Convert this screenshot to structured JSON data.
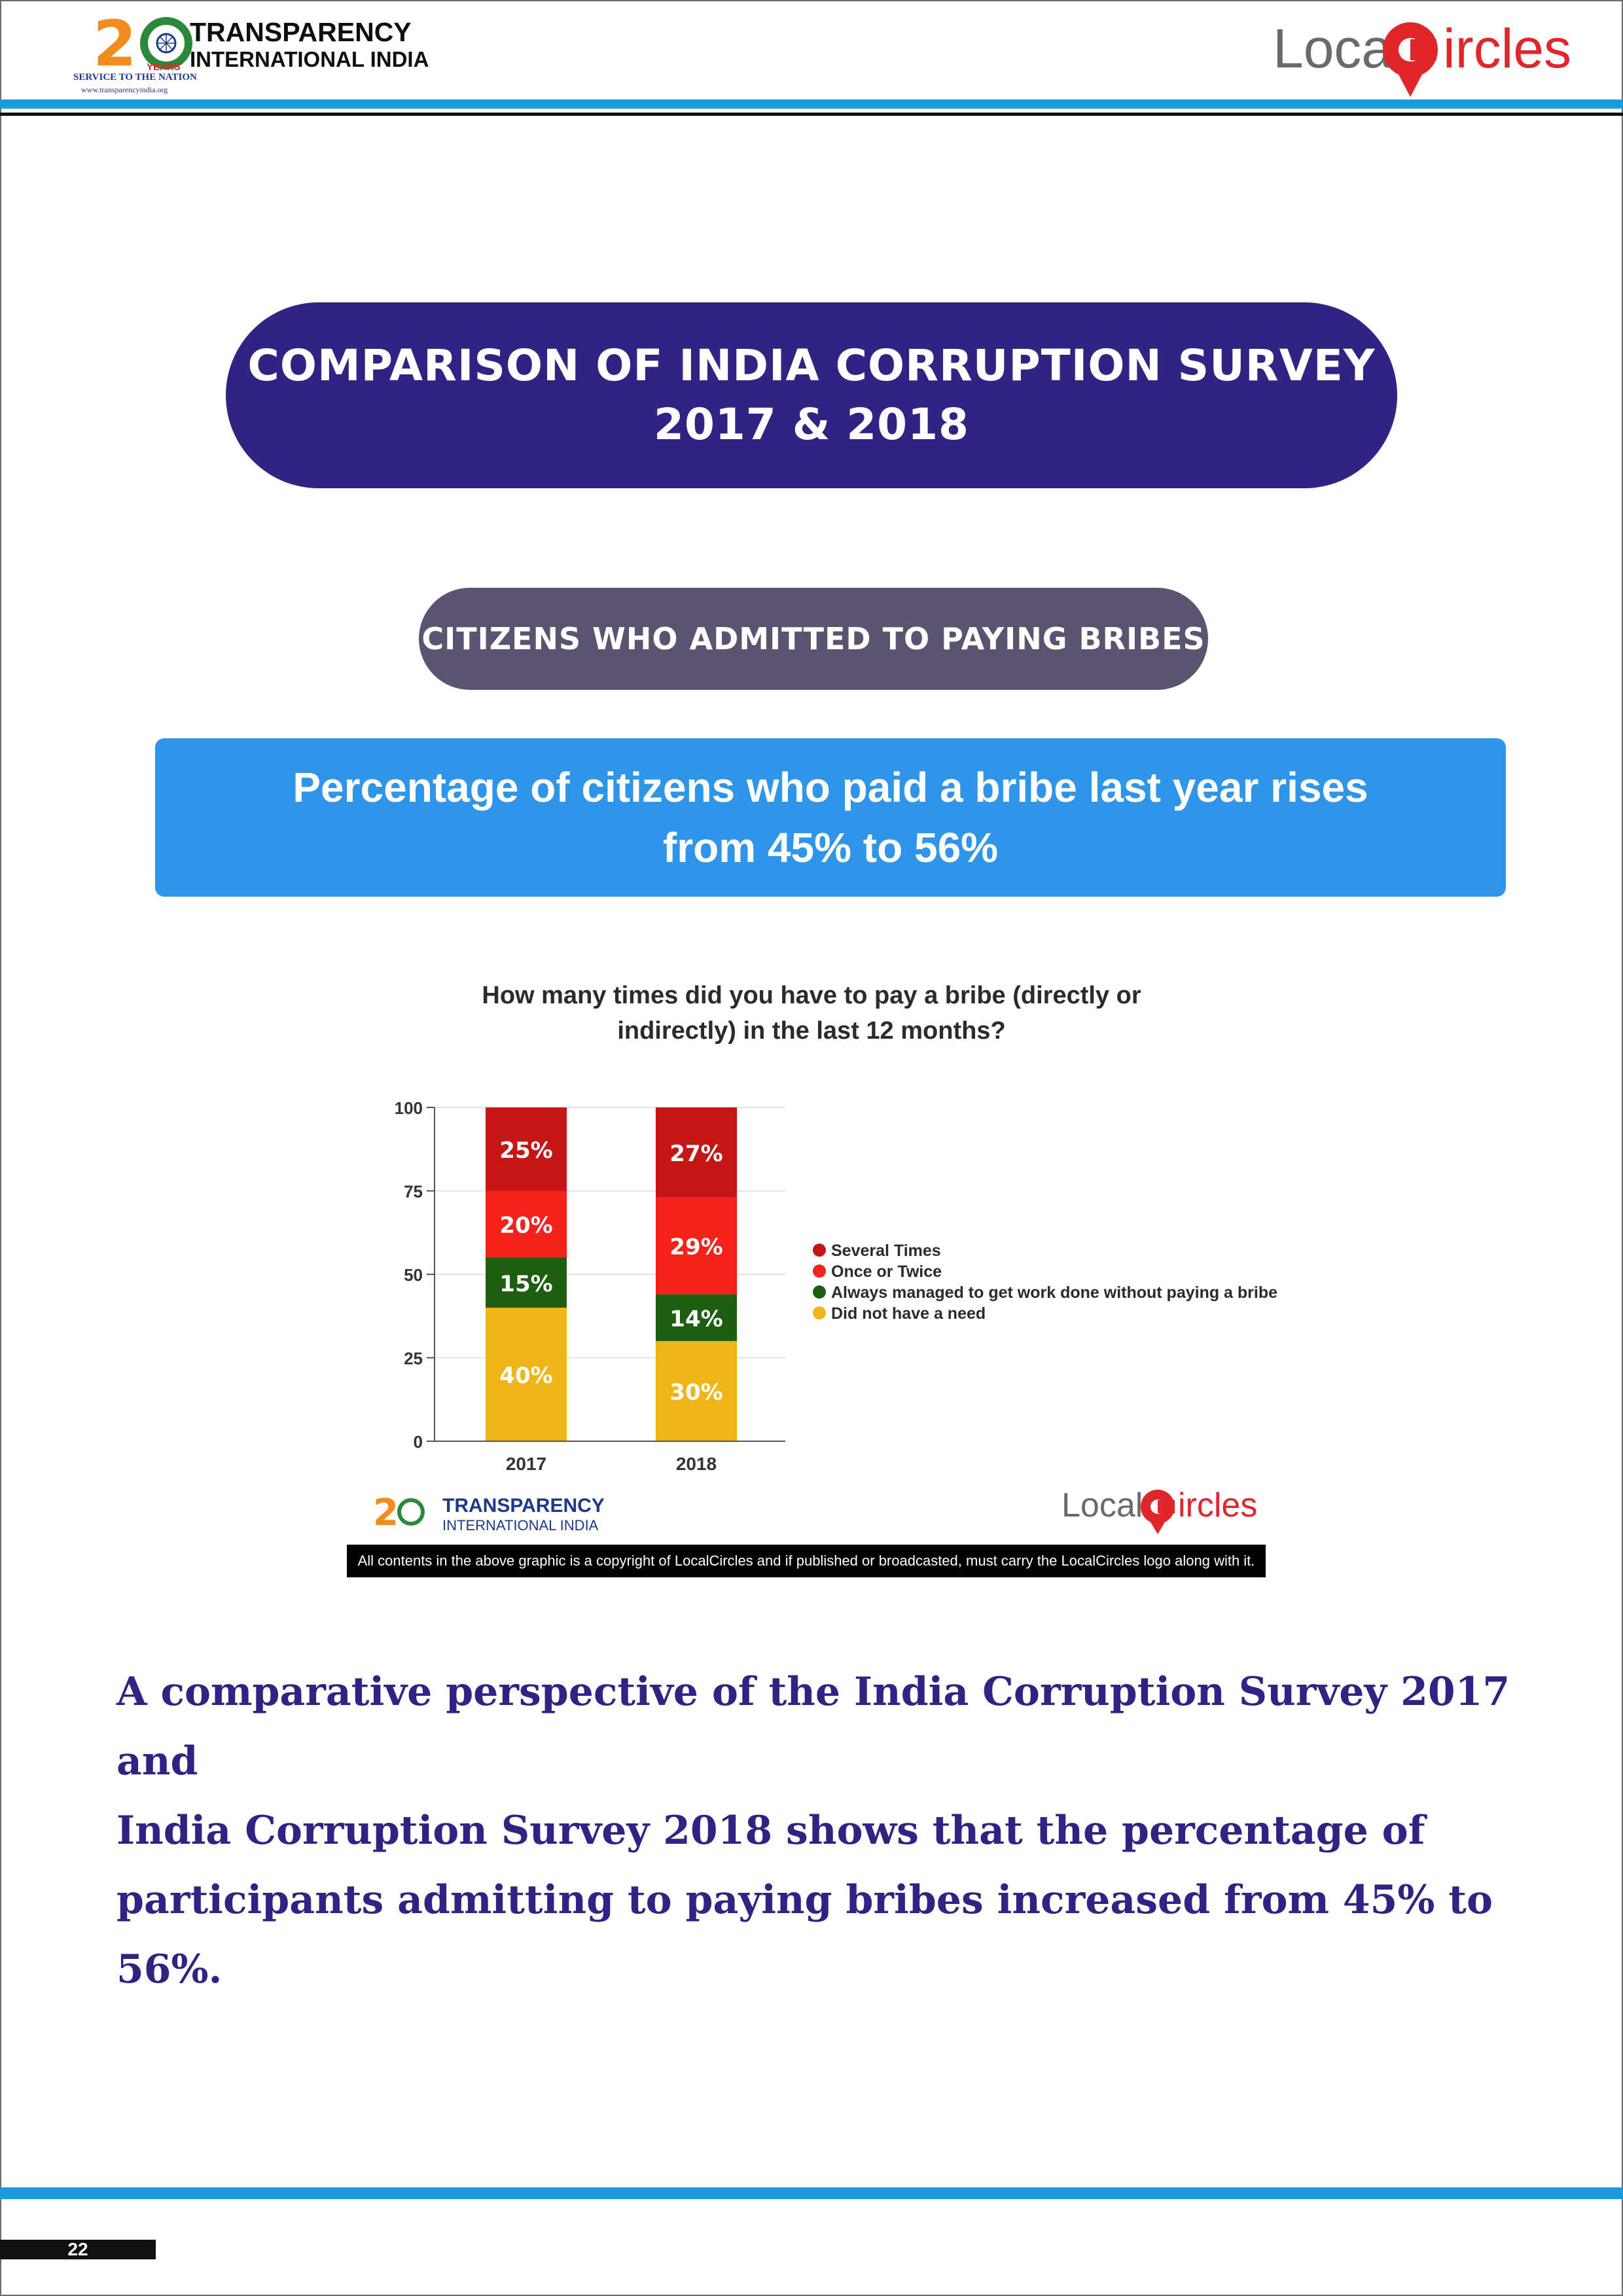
{
  "header": {
    "ti_logo": {
      "name_line1": "TRANSPARENCY",
      "name_line2": "INTERNATIONAL INDIA",
      "years": "YEARS",
      "tagline": "SERVICE TO THE NATION",
      "url": "www.transparencyindia.org"
    },
    "lc_logo": {
      "part1": "Local",
      "part2": "ircles"
    }
  },
  "title": {
    "line1": "COMPARISON OF INDIA CORRUPTION SURVEY",
    "line2": "2017 & 2018"
  },
  "subtitle": "CITIZENS WHO ADMITTED TO PAYING BRIBES",
  "banner": {
    "line1": "Percentage of citizens who paid a bribe last year rises",
    "line2": "from 45% to 56%"
  },
  "chart_title": {
    "line1": "How many times did you have to pay a bribe (directly or",
    "line2": "indirectly) in the last 12 months?"
  },
  "chart_data": {
    "type": "bar",
    "stacked": true,
    "categories": [
      "2017",
      "2018"
    ],
    "series": [
      {
        "name": "Did not have a need",
        "values": [
          40,
          30
        ],
        "color": "#f0b519",
        "labels": [
          "40%",
          "30%"
        ]
      },
      {
        "name": "Always managed to get work done without paying a bribe",
        "values": [
          15,
          14
        ],
        "color": "#1d5e10",
        "labels": [
          "15%",
          "14%"
        ]
      },
      {
        "name": "Once or Twice",
        "values": [
          20,
          29
        ],
        "color": "#f5221c",
        "labels": [
          "20%",
          "29%"
        ]
      },
      {
        "name": "Several Times",
        "values": [
          25,
          27
        ],
        "color": "#c51616",
        "labels": [
          "25%",
          "27%"
        ]
      }
    ],
    "legend_order": [
      "Several Times",
      "Once or Twice",
      "Always managed to get work done without paying a bribe",
      "Did not have a need"
    ],
    "ylim": [
      0,
      100
    ],
    "yticks": [
      0,
      25,
      50,
      75,
      100
    ],
    "legend_position": "right",
    "grid": true
  },
  "chart_footer": {
    "ti_name_line1": "TRANSPARENCY",
    "ti_name_line2": "INTERNATIONAL INDIA",
    "lc_part1": "Local",
    "lc_part2": "ircles",
    "copyright": "All contents in the above graphic is a copyright of LocalCircles and if published or broadcasted, must carry the LocalCircles logo along with it."
  },
  "body": {
    "line1": "A comparative perspective of the India Corruption Survey 2017 and",
    "line2": "India Corruption Survey 2018 shows that the percentage of",
    "line3": "participants admitting to paying bribes increased from 45% to",
    "line4": "56%."
  },
  "page_number": "22"
}
